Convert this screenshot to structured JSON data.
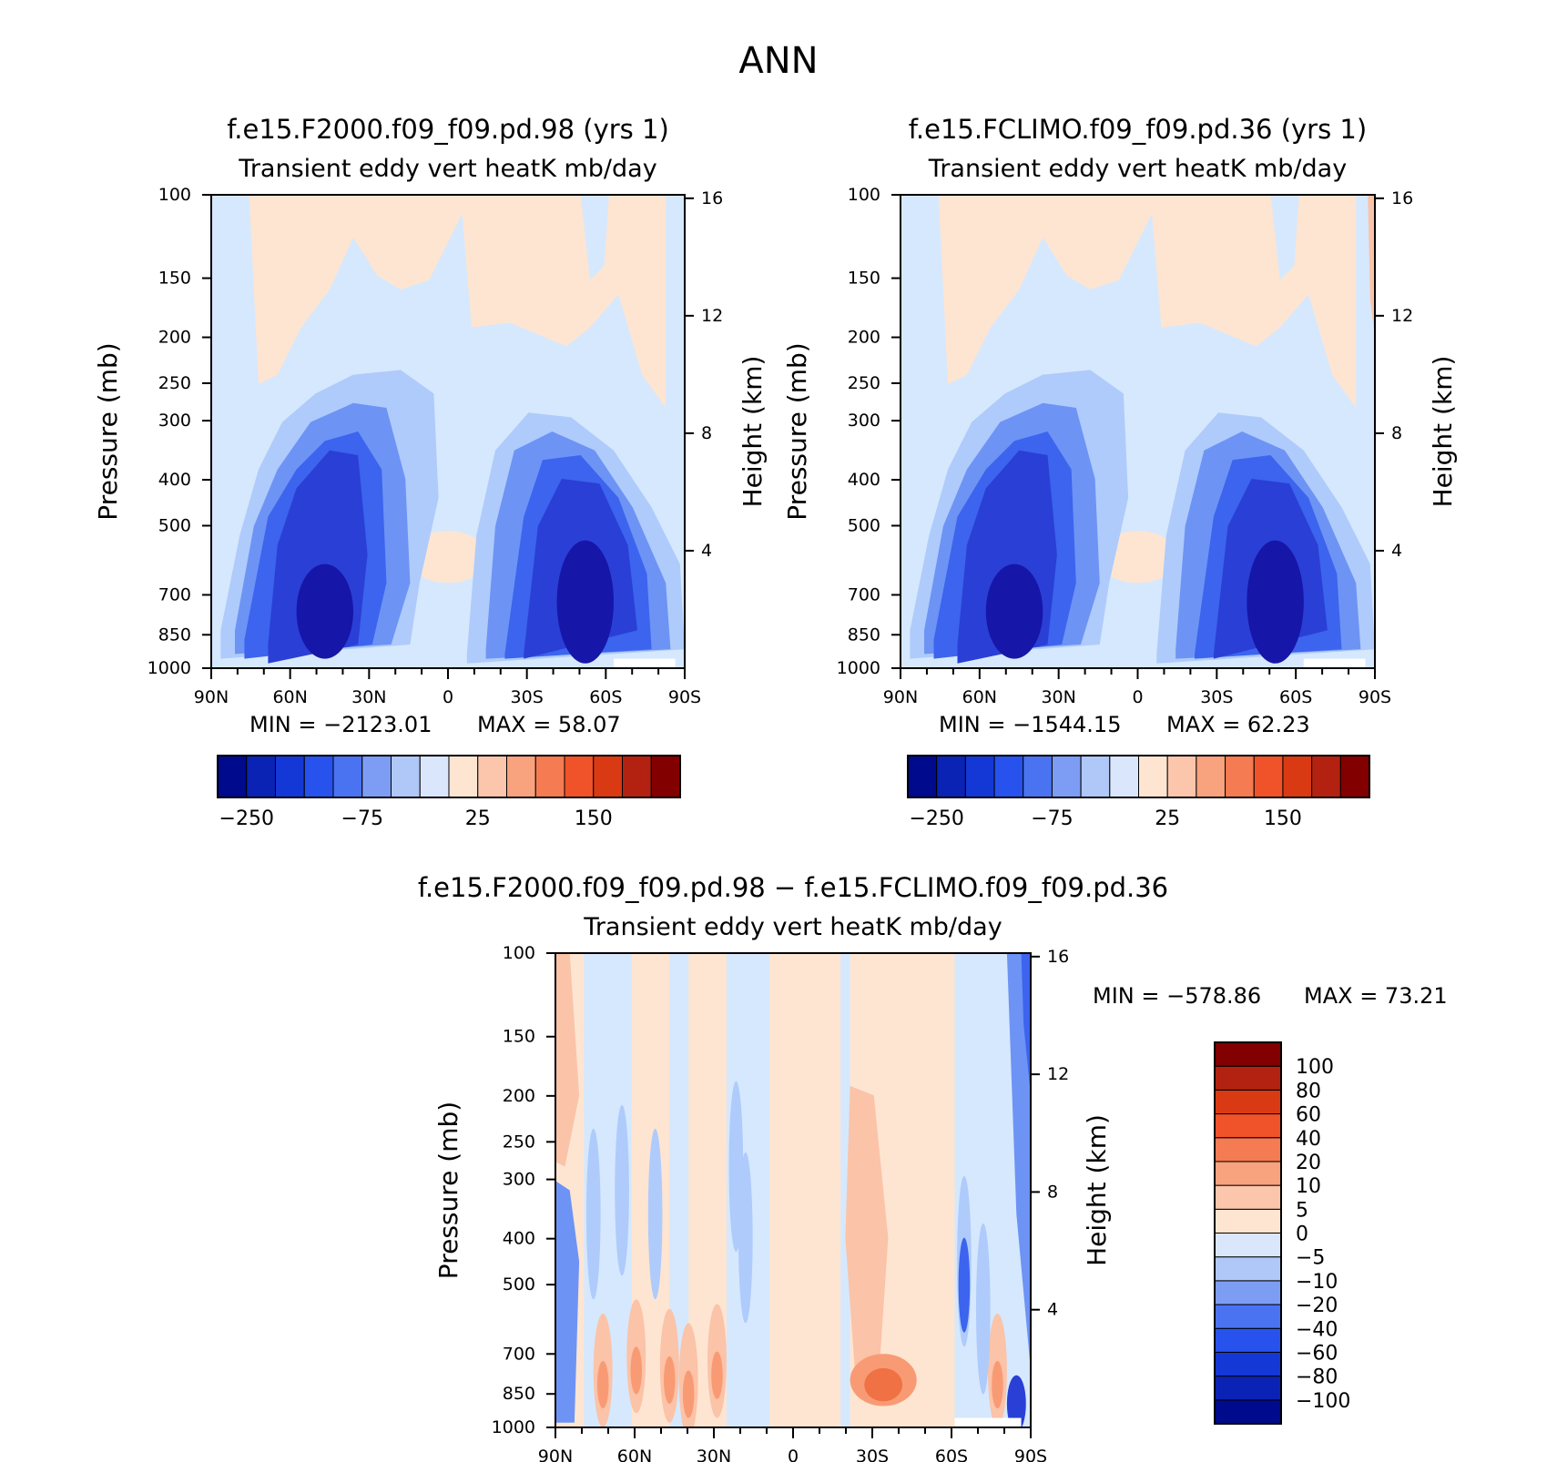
{
  "figure_title": "ANN",
  "colors": {
    "neg5": "#1616a8",
    "neg4": "#2a3fd6",
    "neg3": "#3c64ee",
    "neg2": "#6d93f5",
    "neg1": "#aecbfb",
    "neg0": "#d6e8fd",
    "pos0": "#fde5d2",
    "pos1": "#fbc3a8",
    "pos2": "#f89b74",
    "pos3": "#f07143",
    "axis": "#000000",
    "background": "#ffffff"
  },
  "colorbar_abs": {
    "colors": [
      "#000a8c",
      "#0a23b4",
      "#1438d6",
      "#2752ee",
      "#4a73f2",
      "#7d9df5",
      "#afc8f8",
      "#d9e6fb",
      "#fde5d2",
      "#fbc6ac",
      "#f8a27e",
      "#f57b52",
      "#f0522a",
      "#d93a13",
      "#b32210",
      "#820000"
    ],
    "labels": [
      "−250",
      "−75",
      "25",
      "150"
    ]
  },
  "colorbar_diff": {
    "colors": [
      "#000a8c",
      "#0a23b4",
      "#1438d6",
      "#2752ee",
      "#4a73f2",
      "#7d9df5",
      "#afc8f8",
      "#d9e6fb",
      "#fde5d2",
      "#fbc6ac",
      "#f8a27e",
      "#f57b52",
      "#f0522a",
      "#d93a13",
      "#b32210",
      "#820000"
    ],
    "labels": [
      "100",
      "80",
      "60",
      "40",
      "20",
      "10",
      "5",
      "0",
      "−5",
      "−10",
      "−20",
      "−40",
      "−60",
      "−80",
      "−100"
    ]
  },
  "chart_data": [
    {
      "type": "heatmap",
      "title": "f.e15.F2000.f09_f09.pd.98 (yrs 1)",
      "subtitle": "Transient eddy vert heatK mb/day",
      "xlabel": "",
      "ylabel": "Pressure (mb)",
      "ylabel_right": "Height (km)",
      "x_ticks": [
        "90N",
        "60N",
        "30N",
        "0",
        "30S",
        "60S",
        "90S"
      ],
      "y_ticks": [
        "100",
        "150",
        "200",
        "250",
        "300",
        "400",
        "500",
        "700",
        "850",
        "1000"
      ],
      "y_right_ticks": [
        "16",
        "12",
        "8",
        "4"
      ],
      "min_label": "MIN = −2123.01",
      "max_label": "MAX =   58.07",
      "min": -2123.01,
      "max": 58.07,
      "ylim": [
        1000,
        100
      ],
      "xlim": [
        90,
        -90
      ]
    },
    {
      "type": "heatmap",
      "title": "f.e15.FCLIMO.f09_f09.pd.36 (yrs 1)",
      "subtitle": "Transient eddy vert heatK mb/day",
      "xlabel": "",
      "ylabel": "Pressure (mb)",
      "ylabel_right": "Height (km)",
      "x_ticks": [
        "90N",
        "60N",
        "30N",
        "0",
        "30S",
        "60S",
        "90S"
      ],
      "y_ticks": [
        "100",
        "150",
        "200",
        "250",
        "300",
        "400",
        "500",
        "700",
        "850",
        "1000"
      ],
      "y_right_ticks": [
        "16",
        "12",
        "8",
        "4"
      ],
      "min_label": "MIN = −1544.15",
      "max_label": "MAX =   62.23",
      "min": -1544.15,
      "max": 62.23,
      "ylim": [
        1000,
        100
      ],
      "xlim": [
        90,
        -90
      ]
    },
    {
      "type": "heatmap",
      "title": "f.e15.F2000.f09_f09.pd.98 − f.e15.FCLIMO.f09_f09.pd.36",
      "subtitle": "Transient eddy vert heatK mb/day",
      "xlabel": "",
      "ylabel": "Pressure (mb)",
      "ylabel_right": "Height (km)",
      "x_ticks": [
        "90N",
        "60N",
        "30N",
        "0",
        "30S",
        "60S",
        "90S"
      ],
      "y_ticks": [
        "100",
        "150",
        "200",
        "250",
        "300",
        "400",
        "500",
        "700",
        "850",
        "1000"
      ],
      "y_right_ticks": [
        "16",
        "12",
        "8",
        "4"
      ],
      "min_label": "MIN = −578.86",
      "max_label": "MAX =   73.21",
      "min": -578.86,
      "max": 73.21,
      "ylim": [
        1000,
        100
      ],
      "xlim": [
        90,
        -90
      ]
    }
  ]
}
